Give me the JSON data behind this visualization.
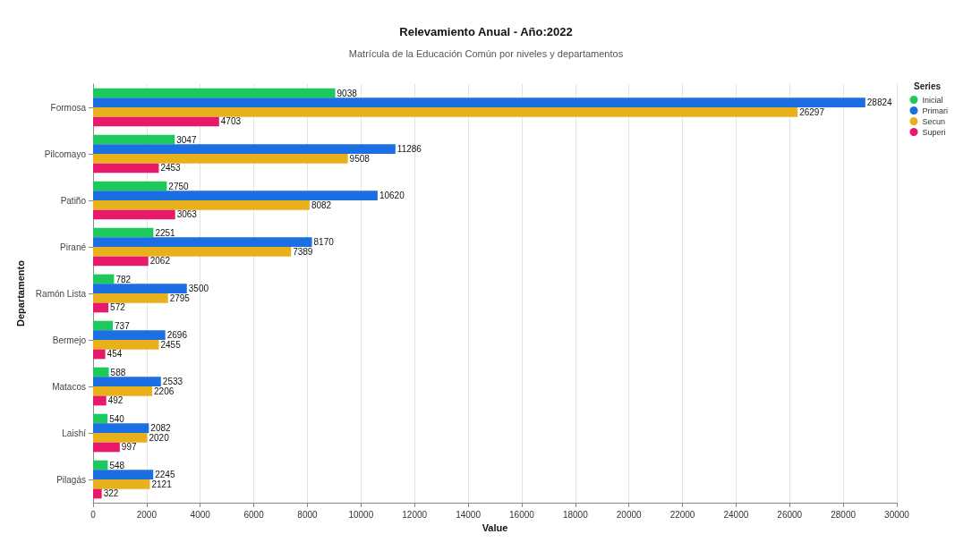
{
  "chart_data": {
    "type": "bar",
    "orientation": "horizontal",
    "title": "Relevamiento Anual - Año:2022",
    "subtitle": "Matrícula de la Educación Común por niveles y departamentos",
    "xlabel": "Value",
    "ylabel": "Departamento",
    "legend_title": "Series",
    "legend": "right",
    "categories": [
      "Formosa",
      "Pilcomayo",
      "Patiño",
      "Pirané",
      "Ramón Lista",
      "Bermejo",
      "Matacos",
      "Laishí",
      "Pilagás"
    ],
    "series": [
      {
        "name": "Inicial",
        "color": "#1ec95c",
        "values": [
          9038,
          3047,
          2750,
          2251,
          782,
          737,
          588,
          540,
          548
        ]
      },
      {
        "name": "Primari",
        "color": "#1b6fe3",
        "values": [
          28824,
          11286,
          10620,
          8170,
          3500,
          2696,
          2533,
          2082,
          2245
        ]
      },
      {
        "name": "Secun",
        "color": "#e8b11c",
        "values": [
          26297,
          9508,
          8082,
          7389,
          2795,
          2455,
          2206,
          2020,
          2121
        ]
      },
      {
        "name": "Superi",
        "color": "#e8186a",
        "values": [
          4703,
          2453,
          3063,
          2062,
          572,
          454,
          492,
          997,
          322
        ]
      }
    ],
    "xlim": [
      0,
      30000
    ],
    "xticks": [
      0,
      2000,
      4000,
      6000,
      8000,
      10000,
      12000,
      14000,
      16000,
      18000,
      20000,
      22000,
      24000,
      26000,
      28000,
      30000
    ],
    "grid": "x",
    "data_labels": true
  }
}
